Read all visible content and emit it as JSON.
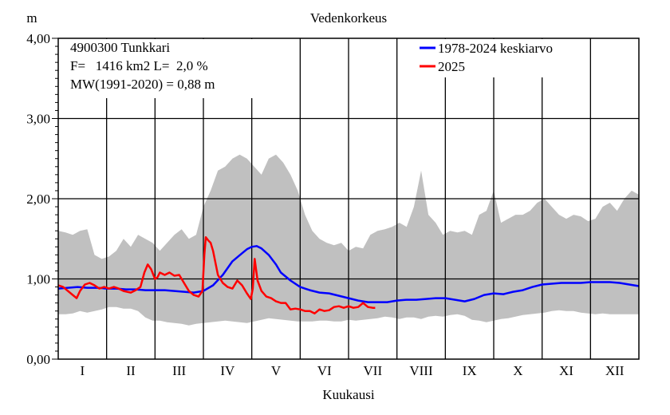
{
  "chart_data": {
    "type": "area",
    "title": "Vedenkorkeus",
    "ylabel": "m",
    "xlabel": "Kuukausi",
    "ylim": [
      0,
      4
    ],
    "yticks": [
      "0,00",
      "1,00",
      "2,00",
      "3,00",
      "4,00"
    ],
    "months": [
      "I",
      "II",
      "III",
      "IV",
      "V",
      "VI",
      "VII",
      "VIII",
      "IX",
      "X",
      "XI",
      "XII"
    ],
    "info": [
      "4900300 Tunkkari",
      "F=   1416 km2 L=  2,0 %",
      "MW(1991-2020) = 0,88 m"
    ],
    "legend": [
      {
        "label": "1978-2024 keskiarvo",
        "color": "#0000ff"
      },
      {
        "label": "2025",
        "color": "#ff0000"
      }
    ],
    "band_color": "#c0c0c0",
    "band": {
      "x": [
        0.0,
        0.15,
        0.3,
        0.45,
        0.6,
        0.75,
        0.9,
        1.05,
        1.2,
        1.35,
        1.5,
        1.65,
        1.8,
        1.95,
        2.1,
        2.25,
        2.4,
        2.55,
        2.7,
        2.85,
        3.0,
        3.15,
        3.3,
        3.45,
        3.6,
        3.75,
        3.9,
        4.05,
        4.2,
        4.35,
        4.5,
        4.65,
        4.8,
        4.95,
        5.1,
        5.25,
        5.4,
        5.55,
        5.7,
        5.85,
        6.0,
        6.15,
        6.3,
        6.45,
        6.6,
        6.75,
        6.9,
        7.05,
        7.2,
        7.35,
        7.5,
        7.65,
        7.8,
        7.95,
        8.1,
        8.25,
        8.4,
        8.55,
        8.7,
        8.85,
        9.0,
        9.15,
        9.3,
        9.45,
        9.6,
        9.75,
        9.9,
        10.05,
        10.2,
        10.35,
        10.5,
        10.65,
        10.8,
        10.95,
        11.1,
        11.25,
        11.4,
        11.55,
        11.7,
        11.85,
        12.0
      ],
      "max": [
        1.6,
        1.58,
        1.55,
        1.6,
        1.62,
        1.3,
        1.25,
        1.28,
        1.35,
        1.5,
        1.4,
        1.55,
        1.5,
        1.45,
        1.35,
        1.45,
        1.55,
        1.62,
        1.5,
        1.55,
        1.9,
        2.1,
        2.35,
        2.4,
        2.5,
        2.55,
        2.5,
        2.4,
        2.3,
        2.5,
        2.55,
        2.45,
        2.3,
        2.1,
        1.8,
        1.6,
        1.5,
        1.45,
        1.42,
        1.45,
        1.35,
        1.4,
        1.38,
        1.55,
        1.6,
        1.62,
        1.65,
        1.7,
        1.65,
        1.9,
        2.35,
        1.8,
        1.7,
        1.55,
        1.6,
        1.58,
        1.6,
        1.55,
        1.8,
        1.85,
        2.1,
        1.7,
        1.75,
        1.8,
        1.8,
        1.85,
        1.95,
        2.0,
        1.9,
        1.8,
        1.75,
        1.8,
        1.78,
        1.72,
        1.75,
        1.9,
        1.95,
        1.85,
        2.0,
        2.1,
        2.05
      ],
      "min": [
        0.56,
        0.56,
        0.57,
        0.6,
        0.58,
        0.6,
        0.62,
        0.65,
        0.65,
        0.63,
        0.63,
        0.6,
        0.52,
        0.48,
        0.48,
        0.46,
        0.45,
        0.44,
        0.42,
        0.44,
        0.45,
        0.46,
        0.47,
        0.48,
        0.47,
        0.46,
        0.45,
        0.47,
        0.49,
        0.51,
        0.5,
        0.49,
        0.48,
        0.47,
        0.47,
        0.47,
        0.48,
        0.48,
        0.47,
        0.47,
        0.49,
        0.48,
        0.49,
        0.5,
        0.51,
        0.53,
        0.52,
        0.5,
        0.52,
        0.52,
        0.5,
        0.53,
        0.54,
        0.53,
        0.55,
        0.56,
        0.54,
        0.49,
        0.48,
        0.46,
        0.48,
        0.5,
        0.51,
        0.53,
        0.55,
        0.56,
        0.57,
        0.58,
        0.6,
        0.61,
        0.6,
        0.6,
        0.58,
        0.57,
        0.56,
        0.57,
        0.56,
        0.56,
        0.56,
        0.56,
        0.56
      ]
    },
    "series": [
      {
        "name": "1978-2024 keskiarvo",
        "color": "#0000ff",
        "x": [
          0.0,
          0.2,
          0.4,
          0.6,
          0.8,
          1.0,
          1.2,
          1.4,
          1.6,
          1.8,
          2.0,
          2.2,
          2.4,
          2.6,
          2.8,
          3.0,
          3.2,
          3.4,
          3.6,
          3.8,
          3.9,
          4.0,
          4.1,
          4.2,
          4.35,
          4.5,
          4.6,
          4.8,
          5.0,
          5.2,
          5.4,
          5.6,
          5.8,
          6.0,
          6.2,
          6.4,
          6.6,
          6.8,
          7.0,
          7.2,
          7.4,
          7.6,
          7.8,
          8.0,
          8.2,
          8.4,
          8.6,
          8.8,
          9.0,
          9.2,
          9.4,
          9.6,
          9.8,
          10.0,
          10.2,
          10.4,
          10.6,
          10.8,
          11.0,
          11.2,
          11.4,
          11.6,
          11.8,
          12.0
        ],
        "y": [
          0.88,
          0.89,
          0.9,
          0.89,
          0.89,
          0.88,
          0.88,
          0.87,
          0.87,
          0.86,
          0.86,
          0.86,
          0.85,
          0.84,
          0.83,
          0.85,
          0.92,
          1.05,
          1.22,
          1.32,
          1.37,
          1.4,
          1.41,
          1.38,
          1.3,
          1.18,
          1.08,
          0.98,
          0.9,
          0.86,
          0.83,
          0.82,
          0.79,
          0.76,
          0.73,
          0.71,
          0.71,
          0.71,
          0.73,
          0.74,
          0.74,
          0.75,
          0.76,
          0.76,
          0.74,
          0.72,
          0.75,
          0.8,
          0.82,
          0.81,
          0.84,
          0.86,
          0.9,
          0.93,
          0.94,
          0.95,
          0.95,
          0.95,
          0.96,
          0.96,
          0.96,
          0.95,
          0.93,
          0.91
        ]
      },
      {
        "name": "2025",
        "color": "#ff0000",
        "x": [
          0.0,
          0.1,
          0.2,
          0.3,
          0.38,
          0.45,
          0.55,
          0.65,
          0.75,
          0.85,
          0.95,
          1.05,
          1.15,
          1.25,
          1.35,
          1.5,
          1.6,
          1.7,
          1.78,
          1.85,
          1.92,
          2.0,
          2.05,
          2.1,
          2.2,
          2.3,
          2.4,
          2.5,
          2.6,
          2.7,
          2.8,
          2.9,
          2.98,
          3.02,
          3.05,
          3.1,
          3.15,
          3.2,
          3.3,
          3.4,
          3.5,
          3.6,
          3.7,
          3.8,
          3.9,
          3.98,
          4.02,
          4.06,
          4.12,
          4.2,
          4.3,
          4.4,
          4.5,
          4.6,
          4.7,
          4.8,
          4.9,
          5.0,
          5.1,
          5.2,
          5.3,
          5.4,
          5.5,
          5.6,
          5.7,
          5.8,
          5.9,
          6.0,
          6.1,
          6.2,
          6.3,
          6.4,
          6.5,
          6.55
        ],
        "y": [
          0.92,
          0.9,
          0.85,
          0.8,
          0.76,
          0.85,
          0.93,
          0.95,
          0.92,
          0.88,
          0.9,
          0.88,
          0.9,
          0.88,
          0.85,
          0.83,
          0.86,
          0.9,
          1.08,
          1.18,
          1.12,
          1.0,
          1.02,
          1.08,
          1.05,
          1.08,
          1.04,
          1.05,
          0.95,
          0.85,
          0.8,
          0.78,
          0.85,
          1.3,
          1.52,
          1.48,
          1.45,
          1.35,
          1.05,
          0.95,
          0.9,
          0.88,
          0.98,
          0.92,
          0.82,
          0.75,
          0.88,
          1.25,
          0.98,
          0.85,
          0.78,
          0.76,
          0.72,
          0.7,
          0.7,
          0.62,
          0.63,
          0.62,
          0.6,
          0.6,
          0.57,
          0.62,
          0.6,
          0.61,
          0.65,
          0.66,
          0.64,
          0.66,
          0.64,
          0.65,
          0.7,
          0.65,
          0.64,
          0.64
        ]
      }
    ]
  }
}
